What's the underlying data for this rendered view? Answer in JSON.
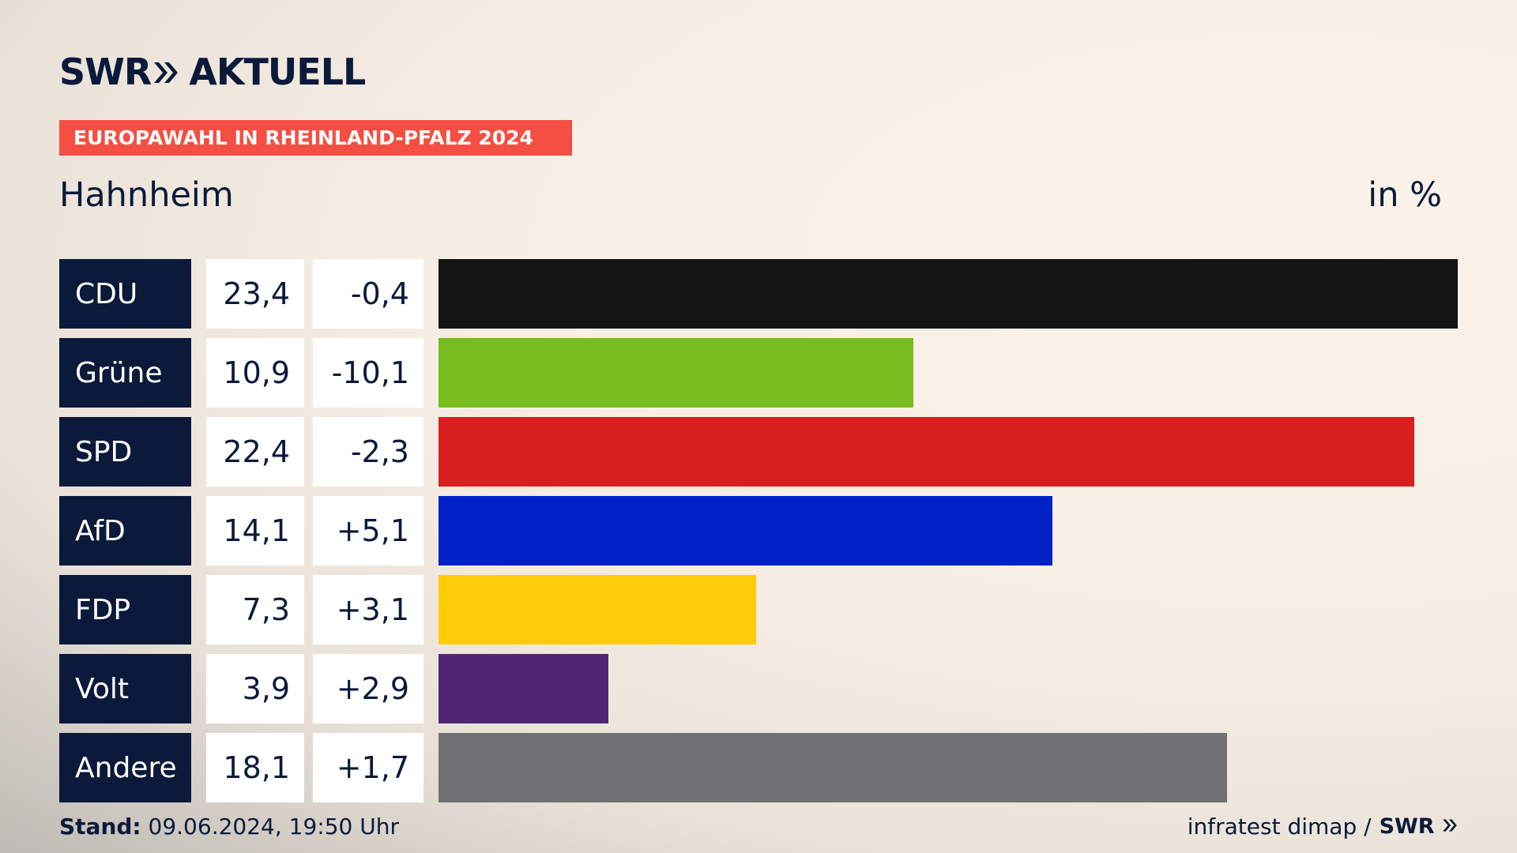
{
  "header": {
    "logo_text": "SWR",
    "logo_suffix": "AKTUELL",
    "banner": "EUROPAWAHL IN RHEINLAND-PFALZ 2024",
    "place": "Hahnheim",
    "unit": "in %"
  },
  "chart_data": {
    "type": "bar",
    "orientation": "horizontal",
    "categories": [
      "CDU",
      "Grüne",
      "SPD",
      "AfD",
      "FDP",
      "Volt",
      "Andere"
    ],
    "values": [
      23.4,
      10.9,
      22.4,
      14.1,
      7.3,
      3.9,
      18.1
    ],
    "value_labels": [
      "23,4",
      "10,9",
      "22,4",
      "14,1",
      "7,3",
      "3,9",
      "18,1"
    ],
    "diff_labels": [
      "-0,4",
      "-10,1",
      "-2,3",
      "+5,1",
      "+3,1",
      "+2,9",
      "+1,7"
    ],
    "diffs": [
      -0.4,
      -10.1,
      -2.3,
      5.1,
      3.1,
      2.9,
      1.7
    ],
    "colors": [
      "#141414",
      "#78bc1e",
      "#d71f1d",
      "#0020c8",
      "#ffcc08",
      "#512574",
      "#717173"
    ],
    "xlim": [
      0,
      23.4
    ]
  },
  "footer": {
    "stand_label": "Stand:",
    "stand_value": "09.06.2024, 19:50 Uhr",
    "source": "infratest dimap /",
    "source_logo": "SWR"
  }
}
